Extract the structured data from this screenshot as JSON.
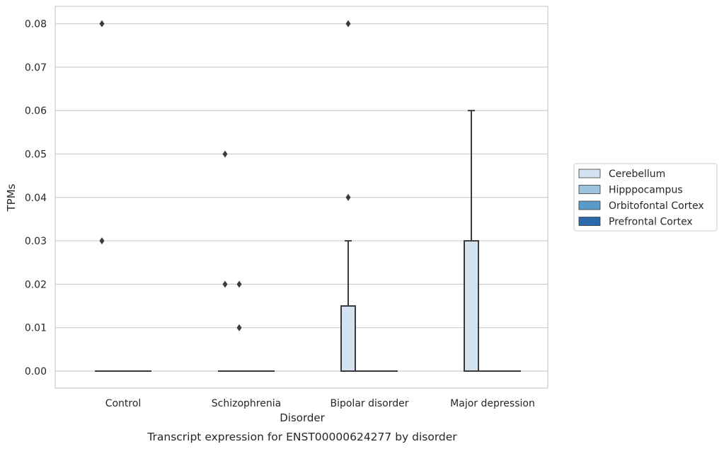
{
  "chart_data": {
    "type": "box",
    "title": "",
    "caption": "Transcript expression for ENST00000624277 by disorder",
    "xlabel": "Disorder",
    "ylabel": "TPMs",
    "categories": [
      "Control",
      "Schizophrenia",
      "Bipolar disorder",
      "Major depression"
    ],
    "y_ticks": [
      "0.00",
      "0.01",
      "0.02",
      "0.03",
      "0.04",
      "0.05",
      "0.06",
      "0.07",
      "0.08"
    ],
    "ylim": [
      -0.004,
      0.084
    ],
    "grid": "horizontal",
    "legend_position": "center-right outside",
    "series": [
      {
        "name": "Cerebellum",
        "color": "#d3e3f2",
        "boxes": [
          {
            "q1": 0,
            "median": 0,
            "q3": 0,
            "whisker_low": 0,
            "whisker_high": 0,
            "outliers": [
              0.03,
              0.08
            ]
          },
          {
            "q1": 0,
            "median": 0,
            "q3": 0,
            "whisker_low": 0,
            "whisker_high": 0,
            "outliers": [
              0.02,
              0.05
            ]
          },
          {
            "q1": 0,
            "median": 0,
            "q3": 0.015,
            "whisker_low": 0,
            "whisker_high": 0.03,
            "outliers": [
              0.04,
              0.08
            ]
          },
          {
            "q1": 0,
            "median": 0,
            "q3": 0.03,
            "whisker_low": 0,
            "whisker_high": 0.06,
            "outliers": []
          }
        ]
      },
      {
        "name": "Hipppocampus",
        "color": "#9cc3dd",
        "boxes": [
          {
            "q1": 0,
            "median": 0,
            "q3": 0,
            "whisker_low": 0,
            "whisker_high": 0,
            "outliers": []
          },
          {
            "q1": 0,
            "median": 0,
            "q3": 0,
            "whisker_low": 0,
            "whisker_high": 0,
            "outliers": [
              0.01,
              0.02
            ]
          },
          {
            "q1": 0,
            "median": 0,
            "q3": 0,
            "whisker_low": 0,
            "whisker_high": 0,
            "outliers": []
          },
          {
            "q1": 0,
            "median": 0,
            "q3": 0,
            "whisker_low": 0,
            "whisker_high": 0,
            "outliers": []
          }
        ]
      },
      {
        "name": "Orbitofontal Cortex",
        "color": "#5a9ac8",
        "boxes": [
          {
            "q1": 0,
            "median": 0,
            "q3": 0,
            "whisker_low": 0,
            "whisker_high": 0,
            "outliers": []
          },
          {
            "q1": 0,
            "median": 0,
            "q3": 0,
            "whisker_low": 0,
            "whisker_high": 0,
            "outliers": []
          },
          {
            "q1": 0,
            "median": 0,
            "q3": 0,
            "whisker_low": 0,
            "whisker_high": 0,
            "outliers": []
          },
          {
            "q1": 0,
            "median": 0,
            "q3": 0,
            "whisker_low": 0,
            "whisker_high": 0,
            "outliers": []
          }
        ]
      },
      {
        "name": "Prefrontal Cortex",
        "color": "#2a6aaa",
        "boxes": [
          {
            "q1": 0,
            "median": 0,
            "q3": 0,
            "whisker_low": 0,
            "whisker_high": 0,
            "outliers": []
          },
          {
            "q1": 0,
            "median": 0,
            "q3": 0,
            "whisker_low": 0,
            "whisker_high": 0,
            "outliers": []
          },
          {
            "q1": 0,
            "median": 0,
            "q3": 0,
            "whisker_low": 0,
            "whisker_high": 0,
            "outliers": []
          },
          {
            "q1": 0,
            "median": 0,
            "q3": 0,
            "whisker_low": 0,
            "whisker_high": 0,
            "outliers": []
          }
        ]
      }
    ],
    "colors": {
      "grid": "#cccccc",
      "frame": "#cccccc",
      "box_edge": "#3b3b3b",
      "outlier": "#3b3b3b"
    }
  }
}
